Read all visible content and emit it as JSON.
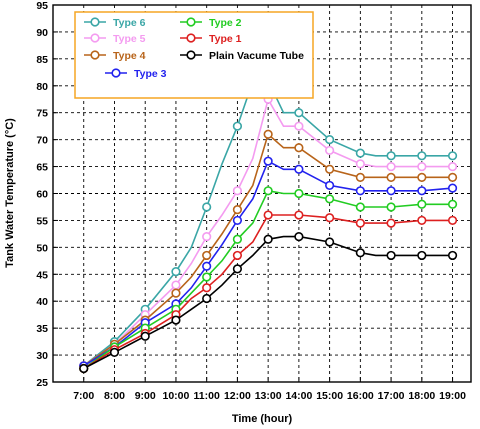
{
  "chart_data": {
    "type": "line",
    "xlabel": "Time (hour)",
    "ylabel": "Tank Water Temperature (°C)",
    "ylim": [
      25,
      95
    ],
    "yticks": [
      25,
      30,
      35,
      40,
      45,
      50,
      55,
      60,
      65,
      70,
      75,
      80,
      85,
      90,
      95
    ],
    "x_tick_labels": [
      "7:00",
      "8:00",
      "9:00",
      "10:00",
      "11:00",
      "12:00",
      "13:00",
      "14:00",
      "15:00",
      "16:00",
      "17:00",
      "18:00",
      "19:00"
    ],
    "x_tick_values": [
      7,
      8,
      9,
      10,
      11,
      12,
      13,
      14,
      15,
      16,
      17,
      18,
      19
    ],
    "xlim": [
      6,
      19.6
    ],
    "x": [
      7,
      8,
      9,
      10,
      10.5,
      11,
      11.5,
      12,
      12.5,
      13,
      13.5,
      14,
      15,
      16,
      16.5,
      17,
      18,
      19
    ],
    "legend_placement": "top-left",
    "series": [
      {
        "name": "Type 6",
        "color": "#3aa6a6",
        "values": [
          28,
          32.5,
          38.5,
          45.5,
          50,
          57.5,
          65.5,
          72.5,
          80.8,
          81,
          75,
          75,
          70,
          67.5,
          67,
          67,
          67,
          67
        ]
      },
      {
        "name": "Type 5",
        "color": "#f49bf0",
        "values": [
          28,
          32,
          37.5,
          43,
          47,
          52,
          56,
          60.5,
          66.5,
          77.5,
          72.5,
          72.5,
          68,
          65.5,
          65,
          65,
          65,
          65
        ]
      },
      {
        "name": "Type 4",
        "color": "#b8641a",
        "values": [
          28,
          32,
          36.5,
          41.5,
          44.5,
          48.5,
          52.5,
          57,
          61.5,
          71,
          68.5,
          68.5,
          64.5,
          63,
          63,
          63,
          63,
          63
        ]
      },
      {
        "name": "Type 3",
        "color": "#2222ee",
        "values": [
          28,
          31.5,
          36,
          39.5,
          42.5,
          46.5,
          50.5,
          55,
          59,
          66,
          64.5,
          64.5,
          61.5,
          60.5,
          60.5,
          60.5,
          60.5,
          61
        ]
      },
      {
        "name": "Type 2",
        "color": "#22cc22",
        "values": [
          27.5,
          31.5,
          35,
          38.5,
          41.5,
          44.5,
          47.5,
          51.5,
          54.5,
          60.5,
          60,
          60,
          59,
          57.5,
          57.5,
          57.5,
          58,
          58
        ]
      },
      {
        "name": "Type 1",
        "color": "#dd2020",
        "values": [
          27.5,
          31,
          34,
          37.5,
          40.5,
          42.5,
          45,
          48.5,
          51,
          56,
          56,
          56,
          55.5,
          54.5,
          54.5,
          54.5,
          55,
          55
        ]
      },
      {
        "name": "Plain Vacume Tube",
        "color": "#000000",
        "values": [
          27.5,
          30.5,
          33.5,
          36.5,
          38.5,
          40.5,
          43,
          46,
          48.5,
          51.5,
          52,
          52,
          51,
          49,
          48.5,
          48.5,
          48.5,
          48.5
        ]
      }
    ]
  }
}
